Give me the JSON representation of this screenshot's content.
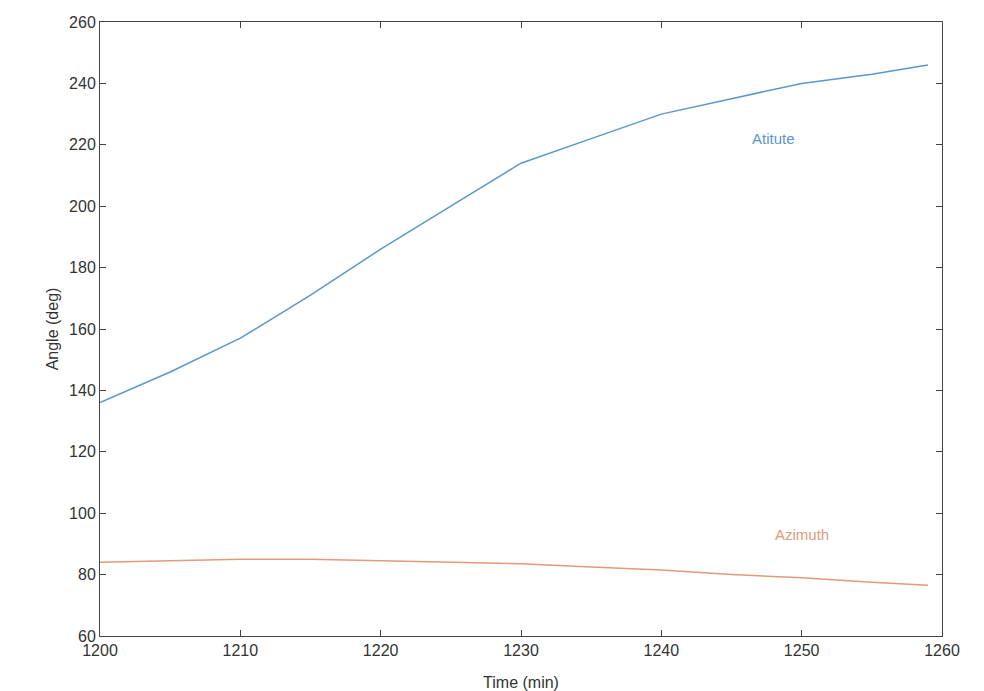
{
  "chart_data": {
    "type": "line",
    "x_label": "Time (min)",
    "y_label": "Angle (deg)",
    "x": [
      1200,
      1205,
      1210,
      1215,
      1220,
      1225,
      1230,
      1235,
      1240,
      1245,
      1250,
      1255,
      1259
    ],
    "series": [
      {
        "name": "Atitute",
        "color": "#5b97cc",
        "values": [
          136,
          146,
          157,
          171,
          186,
          200,
          214,
          222,
          230,
          235,
          240,
          243,
          246
        ]
      },
      {
        "name": "Azimuth",
        "color": "#e39a78",
        "values": [
          84,
          84.5,
          85,
          85,
          84.5,
          84,
          83.5,
          82.5,
          81.5,
          80,
          79,
          77.5,
          76.5
        ]
      }
    ],
    "annotations": [
      {
        "text": "Atitute",
        "x": 1248,
        "y": 222,
        "color": "#5b97cc"
      },
      {
        "text": "Azimuth",
        "x": 1250,
        "y": 93,
        "color": "#e39a78"
      }
    ],
    "xlim": [
      1200,
      1260
    ],
    "xticks": [
      1200,
      1210,
      1220,
      1230,
      1240,
      1250,
      1260
    ],
    "ylim": [
      60,
      260
    ],
    "yticks": [
      60,
      80,
      100,
      120,
      140,
      160,
      180,
      200,
      220,
      240,
      260
    ],
    "grid": false
  }
}
